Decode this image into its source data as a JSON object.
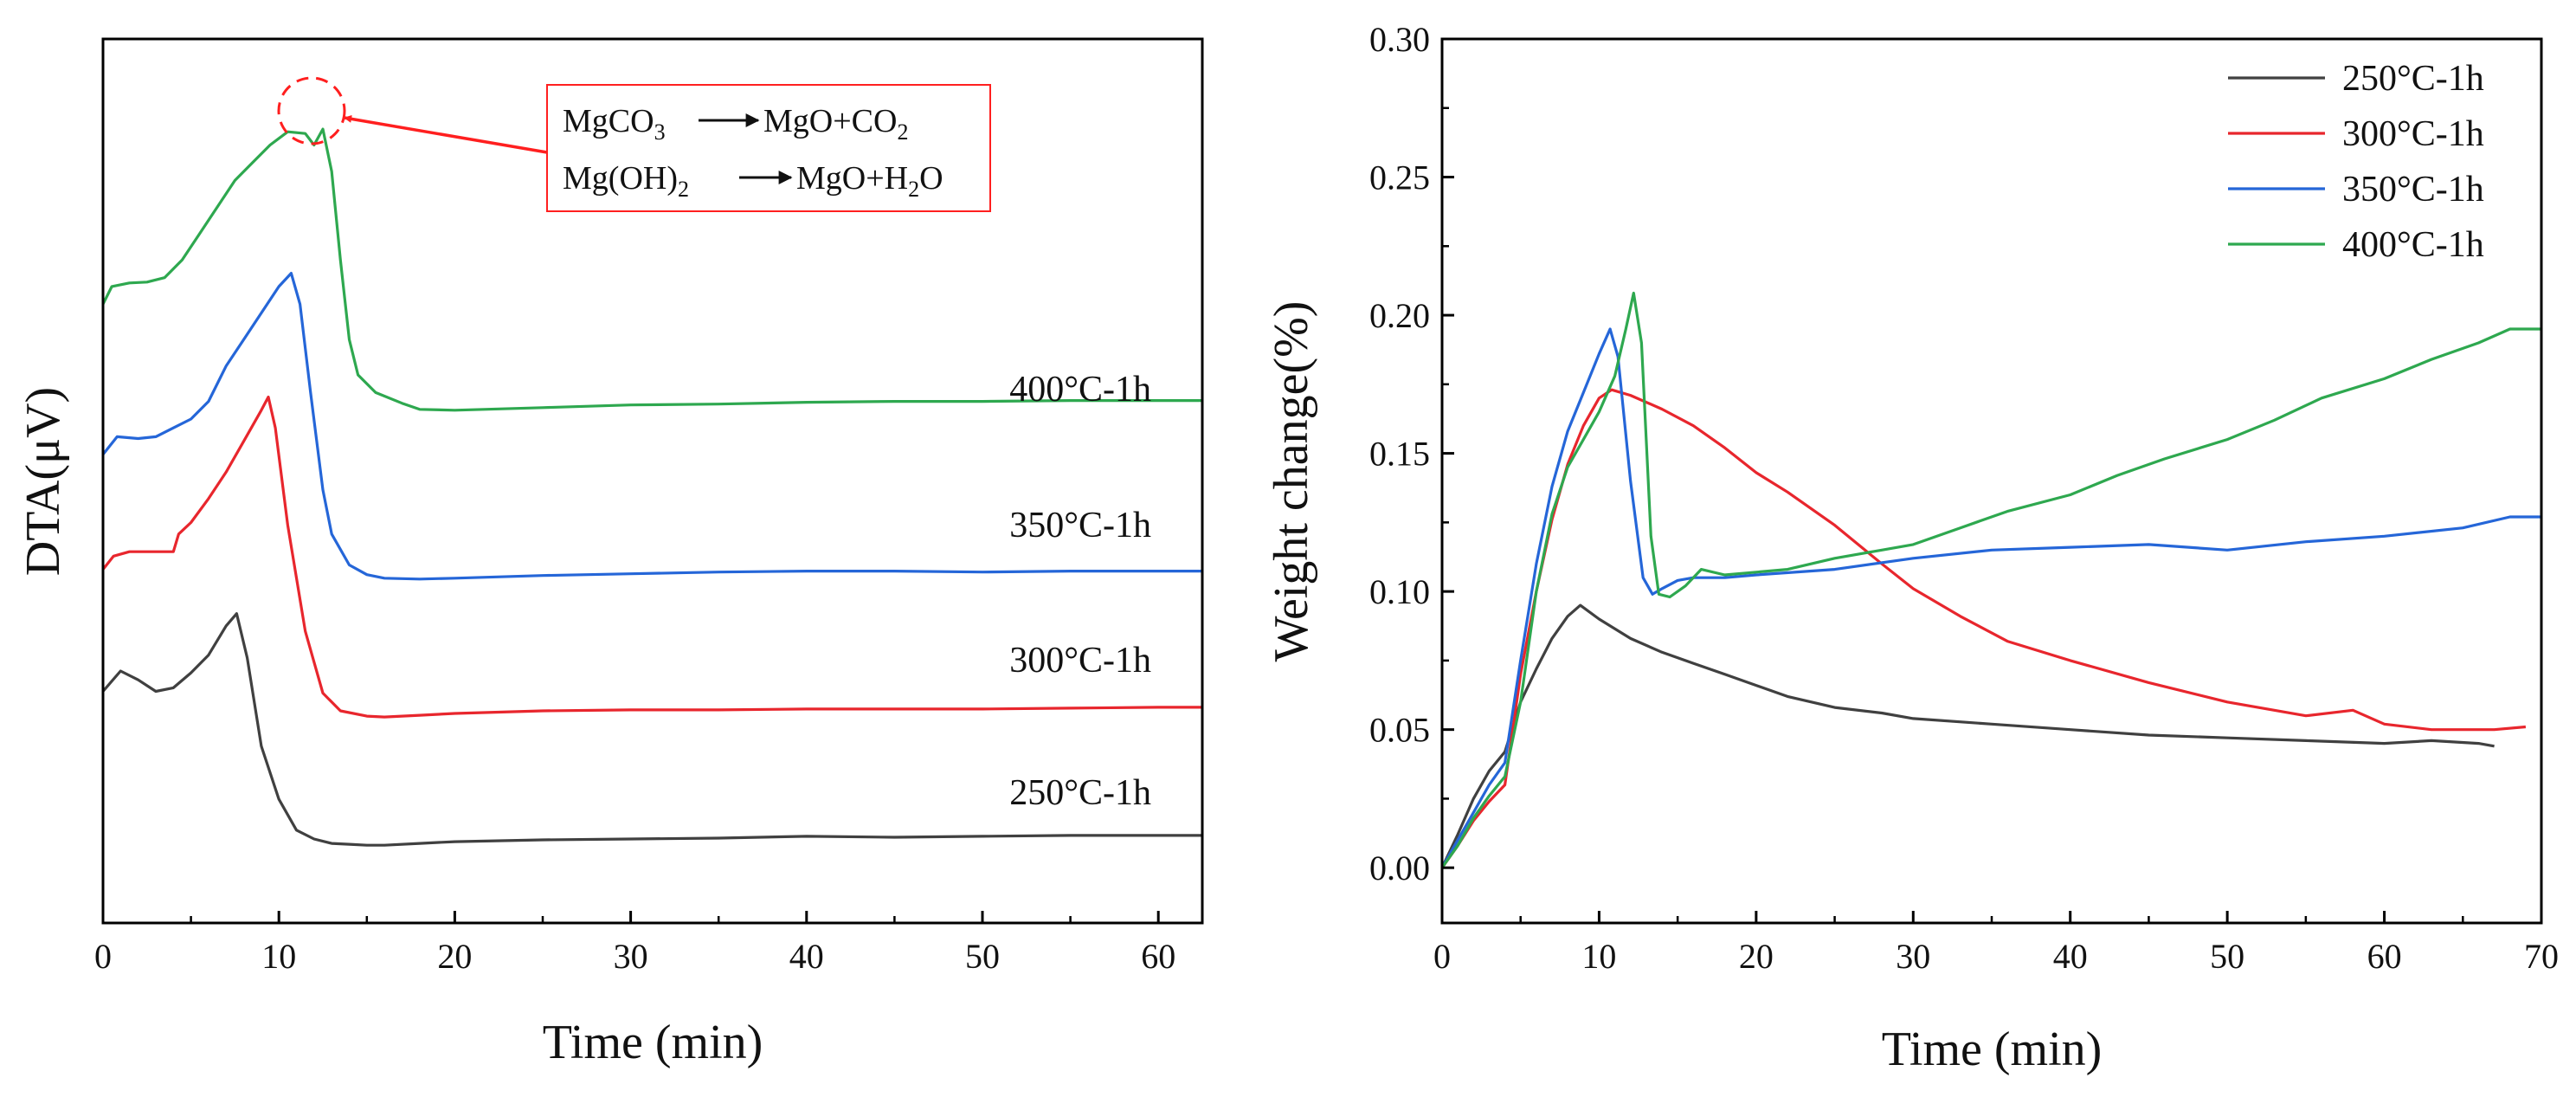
{
  "chart_data": [
    {
      "type": "line",
      "panel": "left",
      "xlabel": "Time (min)",
      "ylabel": "DTA(μV)",
      "xlim": [
        0,
        62.5
      ],
      "ylim": [
        0,
        1
      ],
      "x_ticks": [
        0,
        10,
        20,
        30,
        40,
        50,
        60
      ],
      "y_ticks_shown": false,
      "grid": false,
      "series": [
        {
          "name": "250°C-1h",
          "color": "#404040",
          "points": [
            [
              0,
              0.262
            ],
            [
              1,
              0.285
            ],
            [
              2,
              0.275
            ],
            [
              3,
              0.262
            ],
            [
              4,
              0.266
            ],
            [
              5,
              0.283
            ],
            [
              6,
              0.303
            ],
            [
              7,
              0.336
            ],
            [
              7.6,
              0.35
            ],
            [
              8.2,
              0.3
            ],
            [
              9,
              0.2
            ],
            [
              10,
              0.14
            ],
            [
              11,
              0.105
            ],
            [
              12,
              0.095
            ],
            [
              13,
              0.09
            ],
            [
              14,
              0.089
            ],
            [
              15,
              0.088
            ],
            [
              16,
              0.088
            ],
            [
              18,
              0.09
            ],
            [
              20,
              0.092
            ],
            [
              25,
              0.094
            ],
            [
              30,
              0.095
            ],
            [
              35,
              0.096
            ],
            [
              40,
              0.098
            ],
            [
              45,
              0.097
            ],
            [
              50,
              0.098
            ],
            [
              55,
              0.099
            ],
            [
              60,
              0.099
            ],
            [
              62.5,
              0.099
            ]
          ]
        },
        {
          "name": "300°C-1h",
          "color": "#e8262d",
          "points": [
            [
              0,
              0.4
            ],
            [
              0.6,
              0.415
            ],
            [
              1.5,
              0.42
            ],
            [
              3,
              0.42
            ],
            [
              4,
              0.42
            ],
            [
              4.3,
              0.44
            ],
            [
              5,
              0.453
            ],
            [
              6,
              0.48
            ],
            [
              7,
              0.51
            ],
            [
              8,
              0.545
            ],
            [
              9,
              0.58
            ],
            [
              9.4,
              0.595
            ],
            [
              9.8,
              0.56
            ],
            [
              10.5,
              0.45
            ],
            [
              11.5,
              0.33
            ],
            [
              12.5,
              0.26
            ],
            [
              13.5,
              0.24
            ],
            [
              15,
              0.234
            ],
            [
              16,
              0.233
            ],
            [
              18,
              0.235
            ],
            [
              20,
              0.237
            ],
            [
              25,
              0.24
            ],
            [
              30,
              0.241
            ],
            [
              35,
              0.241
            ],
            [
              40,
              0.242
            ],
            [
              45,
              0.242
            ],
            [
              50,
              0.242
            ],
            [
              55,
              0.243
            ],
            [
              60,
              0.244
            ],
            [
              62.5,
              0.244
            ]
          ]
        },
        {
          "name": "350°C-1h",
          "color": "#2566d8",
          "points": [
            [
              0,
              0.53
            ],
            [
              0.8,
              0.55
            ],
            [
              2,
              0.548
            ],
            [
              3,
              0.55
            ],
            [
              4,
              0.56
            ],
            [
              5,
              0.57
            ],
            [
              6,
              0.59
            ],
            [
              7,
              0.63
            ],
            [
              8,
              0.66
            ],
            [
              9,
              0.69
            ],
            [
              10,
              0.72
            ],
            [
              10.7,
              0.735
            ],
            [
              11.2,
              0.7
            ],
            [
              11.8,
              0.6
            ],
            [
              12.5,
              0.49
            ],
            [
              13,
              0.44
            ],
            [
              14,
              0.405
            ],
            [
              15,
              0.394
            ],
            [
              16,
              0.39
            ],
            [
              18,
              0.389
            ],
            [
              20,
              0.39
            ],
            [
              25,
              0.393
            ],
            [
              30,
              0.395
            ],
            [
              35,
              0.397
            ],
            [
              40,
              0.398
            ],
            [
              45,
              0.398
            ],
            [
              50,
              0.397
            ],
            [
              55,
              0.398
            ],
            [
              60,
              0.398
            ],
            [
              62.5,
              0.398
            ]
          ]
        },
        {
          "name": "400°C-1h",
          "color": "#2ea84f",
          "points": [
            [
              0,
              0.7
            ],
            [
              0.5,
              0.72
            ],
            [
              1.5,
              0.724
            ],
            [
              2.5,
              0.725
            ],
            [
              3.5,
              0.73
            ],
            [
              4.5,
              0.75
            ],
            [
              5.5,
              0.78
            ],
            [
              6.5,
              0.81
            ],
            [
              7.5,
              0.84
            ],
            [
              8.5,
              0.86
            ],
            [
              9.5,
              0.88
            ],
            [
              10.5,
              0.895
            ],
            [
              11.5,
              0.893
            ],
            [
              12,
              0.88
            ],
            [
              12.5,
              0.898
            ],
            [
              13,
              0.85
            ],
            [
              13.5,
              0.75
            ],
            [
              14,
              0.66
            ],
            [
              14.5,
              0.62
            ],
            [
              15.5,
              0.6
            ],
            [
              17,
              0.588
            ],
            [
              18,
              0.581
            ],
            [
              20,
              0.58
            ],
            [
              25,
              0.583
            ],
            [
              30,
              0.586
            ],
            [
              35,
              0.587
            ],
            [
              40,
              0.589
            ],
            [
              45,
              0.59
            ],
            [
              50,
              0.59
            ],
            [
              55,
              0.591
            ],
            [
              60,
              0.591
            ],
            [
              62.5,
              0.591
            ]
          ]
        }
      ],
      "annotations": {
        "curve_labels": [
          "400°C-1h",
          "350°C-1h",
          "300°C-1h",
          "250°C-1h"
        ],
        "box_lines": [
          "MgCO₃ → MgO+CO₂",
          "Mg(OH)₂ → MgO+H₂O"
        ],
        "box_line1_parts": {
          "a": "MgCO",
          "a_sub": "3",
          "b": "MgO+CO",
          "b_sub": "2"
        },
        "box_line2_parts": {
          "a": "Mg(OH)",
          "a_sub": "2",
          "b": "MgO+H",
          "b_sub": "2",
          "b_end": "O"
        },
        "highlight": "dashed red circle around the 400°C-1h double peak near 11–12 min",
        "highlight_color": "#ff1f1f"
      }
    },
    {
      "type": "line",
      "panel": "right",
      "xlabel": "Time (min)",
      "ylabel": "Weight change(%)",
      "xlim": [
        0,
        70
      ],
      "ylim": [
        -0.02,
        0.3
      ],
      "x_ticks": [
        0,
        10,
        20,
        30,
        40,
        50,
        60,
        70
      ],
      "y_ticks": [
        0.0,
        0.05,
        0.1,
        0.15,
        0.2,
        0.25,
        0.3
      ],
      "y_tick_labels": [
        "0.00",
        "0.05",
        "0.10",
        "0.15",
        "0.20",
        "0.25",
        "0.30"
      ],
      "grid": false,
      "legend": "top-right",
      "series": [
        {
          "name": "250°C-1h",
          "color": "#404040",
          "points": [
            [
              0,
              0
            ],
            [
              1,
              0.012
            ],
            [
              2,
              0.025
            ],
            [
              3,
              0.035
            ],
            [
              4,
              0.042
            ],
            [
              5,
              0.06
            ],
            [
              6,
              0.072
            ],
            [
              7,
              0.083
            ],
            [
              8,
              0.091
            ],
            [
              8.8,
              0.095
            ],
            [
              10,
              0.09
            ],
            [
              12,
              0.083
            ],
            [
              14,
              0.078
            ],
            [
              16,
              0.074
            ],
            [
              18,
              0.07
            ],
            [
              20,
              0.066
            ],
            [
              22,
              0.062
            ],
            [
              25,
              0.058
            ],
            [
              28,
              0.056
            ],
            [
              30,
              0.054
            ],
            [
              35,
              0.052
            ],
            [
              40,
              0.05
            ],
            [
              45,
              0.048
            ],
            [
              50,
              0.047
            ],
            [
              55,
              0.046
            ],
            [
              60,
              0.045
            ],
            [
              63,
              0.046
            ],
            [
              66,
              0.045
            ],
            [
              67,
              0.044
            ]
          ]
        },
        {
          "name": "300°C-1h",
          "color": "#e8262d",
          "points": [
            [
              0,
              0
            ],
            [
              1,
              0.008
            ],
            [
              2,
              0.017
            ],
            [
              3,
              0.024
            ],
            [
              4,
              0.03
            ],
            [
              5,
              0.07
            ],
            [
              6,
              0.1
            ],
            [
              7,
              0.126
            ],
            [
              8,
              0.146
            ],
            [
              9,
              0.16
            ],
            [
              10,
              0.17
            ],
            [
              10.8,
              0.173
            ],
            [
              12,
              0.171
            ],
            [
              14,
              0.166
            ],
            [
              16,
              0.16
            ],
            [
              18,
              0.152
            ],
            [
              20,
              0.143
            ],
            [
              22,
              0.136
            ],
            [
              25,
              0.124
            ],
            [
              28,
              0.11
            ],
            [
              30,
              0.101
            ],
            [
              33,
              0.091
            ],
            [
              36,
              0.082
            ],
            [
              40,
              0.075
            ],
            [
              45,
              0.067
            ],
            [
              50,
              0.06
            ],
            [
              55,
              0.055
            ],
            [
              58,
              0.057
            ],
            [
              60,
              0.052
            ],
            [
              63,
              0.05
            ],
            [
              67,
              0.05
            ],
            [
              69,
              0.051
            ]
          ]
        },
        {
          "name": "350°C-1h",
          "color": "#2566d8",
          "points": [
            [
              0,
              0
            ],
            [
              1,
              0.01
            ],
            [
              2,
              0.02
            ],
            [
              3,
              0.03
            ],
            [
              4,
              0.038
            ],
            [
              5,
              0.075
            ],
            [
              6,
              0.11
            ],
            [
              7,
              0.138
            ],
            [
              8,
              0.158
            ],
            [
              9,
              0.172
            ],
            [
              10,
              0.186
            ],
            [
              10.7,
              0.195
            ],
            [
              11.2,
              0.185
            ],
            [
              12,
              0.14
            ],
            [
              12.8,
              0.105
            ],
            [
              13.4,
              0.099
            ],
            [
              14,
              0.101
            ],
            [
              15,
              0.104
            ],
            [
              16,
              0.105
            ],
            [
              18,
              0.105
            ],
            [
              20,
              0.106
            ],
            [
              25,
              0.108
            ],
            [
              30,
              0.112
            ],
            [
              35,
              0.115
            ],
            [
              40,
              0.116
            ],
            [
              45,
              0.117
            ],
            [
              50,
              0.115
            ],
            [
              55,
              0.118
            ],
            [
              60,
              0.12
            ],
            [
              65,
              0.123
            ],
            [
              68,
              0.127
            ],
            [
              70,
              0.127
            ]
          ]
        },
        {
          "name": "400°C-1h",
          "color": "#2ea84f",
          "points": [
            [
              0,
              0
            ],
            [
              1,
              0.008
            ],
            [
              2,
              0.018
            ],
            [
              3,
              0.026
            ],
            [
              4,
              0.033
            ],
            [
              5,
              0.06
            ],
            [
              6,
              0.1
            ],
            [
              7,
              0.128
            ],
            [
              8,
              0.145
            ],
            [
              9,
              0.155
            ],
            [
              10,
              0.165
            ],
            [
              11,
              0.178
            ],
            [
              11.7,
              0.195
            ],
            [
              12.2,
              0.208
            ],
            [
              12.7,
              0.19
            ],
            [
              13.3,
              0.12
            ],
            [
              13.8,
              0.099
            ],
            [
              14.5,
              0.098
            ],
            [
              15.5,
              0.102
            ],
            [
              16.5,
              0.108
            ],
            [
              18,
              0.106
            ],
            [
              20,
              0.107
            ],
            [
              22,
              0.108
            ],
            [
              25,
              0.112
            ],
            [
              28,
              0.115
            ],
            [
              30,
              0.117
            ],
            [
              33,
              0.123
            ],
            [
              36,
              0.129
            ],
            [
              40,
              0.135
            ],
            [
              43,
              0.142
            ],
            [
              46,
              0.148
            ],
            [
              50,
              0.155
            ],
            [
              53,
              0.162
            ],
            [
              56,
              0.17
            ],
            [
              60,
              0.177
            ],
            [
              63,
              0.184
            ],
            [
              66,
              0.19
            ],
            [
              68,
              0.195
            ],
            [
              70,
              0.195
            ]
          ]
        }
      ]
    }
  ]
}
